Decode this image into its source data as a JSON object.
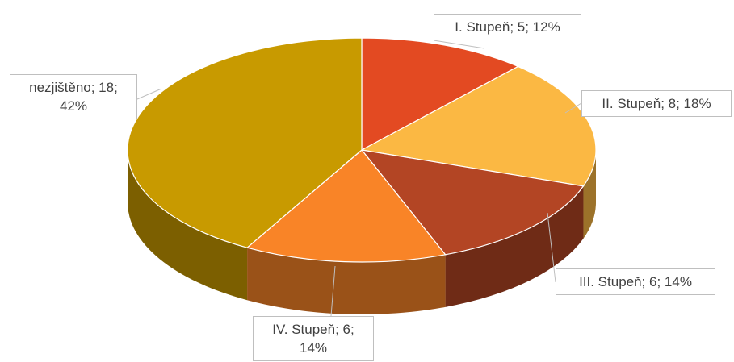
{
  "chart_data": {
    "type": "pie3d",
    "categories": [
      "I. Stupeň",
      "II. Stupeň",
      "III. Stupeň",
      "IV. Stupeň",
      "nezjištěno"
    ],
    "values": [
      5,
      8,
      6,
      6,
      18
    ],
    "value_labels": [
      "I. Stupeň; 5; 12%",
      "II. Stupeň; 8; 18%",
      "III. Stupeň; 6; 14%",
      "IV. Stupeň; 6; 14%",
      "nezjištěno; 18; 42%"
    ],
    "colors": [
      "#e34a22",
      "#fbb843",
      "#b34524",
      "#f98427",
      "#c89a00"
    ]
  }
}
